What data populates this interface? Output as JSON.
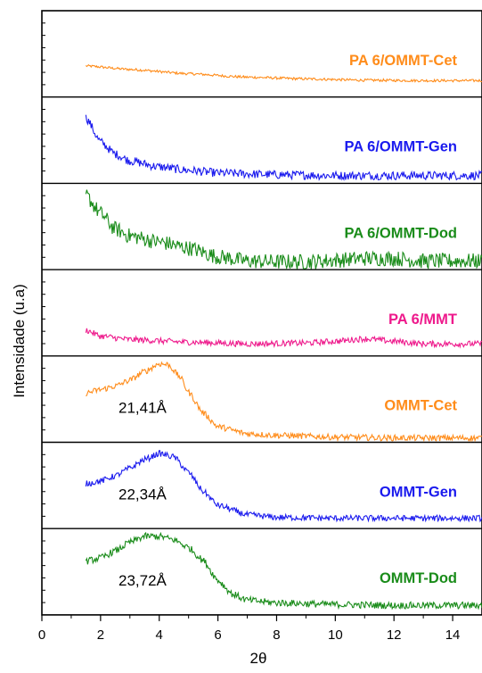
{
  "chart_data": {
    "type": "line",
    "layout": "stacked",
    "title": "",
    "xlabel": "2θ",
    "ylabel": "Intensidade (u.a)",
    "xlim": [
      0,
      15
    ],
    "x_ticks": [
      0,
      2,
      4,
      6,
      8,
      10,
      12,
      14
    ],
    "x_tick_labels": [
      "0",
      "2",
      "4",
      "6",
      "8",
      "10",
      "12",
      "14"
    ],
    "y_ticks_shown": false,
    "grid": false,
    "legend": "none",
    "panels": [
      {
        "label": "PA 6/OMMT-Cet",
        "color": "#ff8c1a",
        "noise": 0.15,
        "points": [
          [
            1.5,
            3.6
          ],
          [
            3,
            3.2
          ],
          [
            5,
            2.7
          ],
          [
            7,
            2.3
          ],
          [
            9,
            2.1
          ],
          [
            11,
            1.95
          ],
          [
            13,
            1.9
          ],
          [
            15,
            1.9
          ]
        ]
      },
      {
        "label": "PA 6/OMMT-Gen",
        "color": "#1a1aee",
        "noise": 0.5,
        "points": [
          [
            1.5,
            7.6
          ],
          [
            2,
            4.8
          ],
          [
            2.5,
            3.4
          ],
          [
            3,
            2.6
          ],
          [
            4,
            1.9
          ],
          [
            5,
            1.5
          ],
          [
            6,
            1.2
          ],
          [
            8,
            1.0
          ],
          [
            10,
            0.9
          ],
          [
            12,
            0.9
          ],
          [
            15,
            0.9
          ]
        ]
      },
      {
        "label": "PA 6/OMMT-Dod",
        "color": "#1a8c1a",
        "noise": 0.9,
        "points": [
          [
            1.5,
            8.6
          ],
          [
            2,
            6.5
          ],
          [
            2.5,
            4.7
          ],
          [
            3,
            3.9
          ],
          [
            4,
            3.2
          ],
          [
            5,
            2.5
          ],
          [
            6,
            1.5
          ],
          [
            7,
            1.0
          ],
          [
            8,
            0.9
          ],
          [
            9,
            0.9
          ],
          [
            10,
            1.1
          ],
          [
            11,
            1.3
          ],
          [
            12,
            1.3
          ],
          [
            13,
            1.0
          ],
          [
            15,
            1.0
          ]
        ]
      },
      {
        "label": "PA 6/MMT",
        "color": "#ee1a8c",
        "noise": 0.35,
        "points": [
          [
            1.5,
            3.0
          ],
          [
            2,
            2.3
          ],
          [
            3,
            1.9
          ],
          [
            5,
            1.6
          ],
          [
            7,
            1.4
          ],
          [
            9,
            1.5
          ],
          [
            10,
            1.7
          ],
          [
            11,
            2.0
          ],
          [
            12,
            1.7
          ],
          [
            13,
            1.4
          ],
          [
            15,
            1.4
          ]
        ]
      },
      {
        "label": "OMMT-Cet",
        "color": "#ff8c1a",
        "noise": 0.35,
        "peak_label": "21,41Å",
        "points": [
          [
            1.5,
            5.7
          ],
          [
            2,
            6.1
          ],
          [
            2.5,
            6.5
          ],
          [
            3,
            7.2
          ],
          [
            3.5,
            8.2
          ],
          [
            4,
            9.1
          ],
          [
            4.3,
            9.0
          ],
          [
            4.7,
            7.6
          ],
          [
            5,
            5.8
          ],
          [
            5.5,
            3.4
          ],
          [
            6,
            1.8
          ],
          [
            7,
            1.0
          ],
          [
            8,
            0.8
          ],
          [
            10,
            0.6
          ],
          [
            12,
            0.5
          ],
          [
            15,
            0.5
          ]
        ]
      },
      {
        "label": "OMMT-Gen",
        "color": "#1a1aee",
        "noise": 0.35,
        "peak_label": "22,34Å",
        "points": [
          [
            1.5,
            5.2
          ],
          [
            2,
            5.5
          ],
          [
            2.5,
            6.1
          ],
          [
            3,
            7.0
          ],
          [
            3.5,
            8.0
          ],
          [
            4,
            8.7
          ],
          [
            4.5,
            8.3
          ],
          [
            5,
            6.5
          ],
          [
            5.5,
            4.3
          ],
          [
            6,
            2.7
          ],
          [
            7,
            1.6
          ],
          [
            8,
            1.3
          ],
          [
            10,
            1.2
          ],
          [
            12,
            1.2
          ],
          [
            15,
            1.2
          ]
        ]
      },
      {
        "label": "OMMT-Dod",
        "color": "#1a8c1a",
        "noise": 0.4,
        "peak_label": "23,72Å",
        "points": [
          [
            1.5,
            6.2
          ],
          [
            2,
            6.6
          ],
          [
            2.5,
            7.4
          ],
          [
            3,
            8.4
          ],
          [
            3.5,
            9.1
          ],
          [
            4,
            9.1
          ],
          [
            4.5,
            8.7
          ],
          [
            5,
            7.8
          ],
          [
            5.5,
            6.3
          ],
          [
            6,
            4.0
          ],
          [
            6.5,
            2.4
          ],
          [
            7,
            1.7
          ],
          [
            8,
            1.4
          ],
          [
            10,
            1.2
          ],
          [
            12,
            1.1
          ],
          [
            15,
            1.1
          ]
        ]
      }
    ]
  }
}
